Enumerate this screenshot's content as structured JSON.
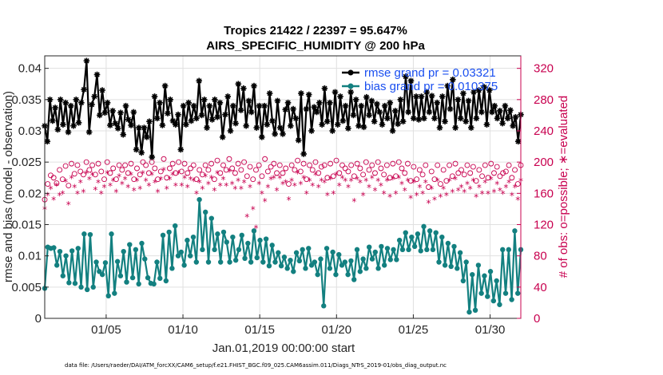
{
  "chart_data": {
    "type": "line",
    "title_line1": "Tropics 21422 / 22397 = 95.647%",
    "title_line2": "AIRS_SPECIFIC_HUMIDITY @ 200 hPa",
    "xlabel": "Jan.01,2019 00:00:00 start",
    "ylabel": "rmse and bias (model - observation)",
    "ylabel_right": "# of obs: o=possible; ∗=evaluated",
    "x_range": [
      1,
      32
    ],
    "ylim": [
      0,
      0.042
    ],
    "ylim_right": [
      0,
      336
    ],
    "x_ticks": [
      5,
      10,
      15,
      20,
      25,
      30
    ],
    "x_tick_labels": [
      "01/05",
      "01/10",
      "01/15",
      "01/20",
      "01/25",
      "01/30"
    ],
    "y_ticks": [
      0,
      0.005,
      0.01,
      0.015,
      0.02,
      0.025,
      0.03,
      0.035,
      0.04
    ],
    "y_tick_labels": [
      "0",
      "0.005",
      "0.01",
      "0.015",
      "0.02",
      "0.025",
      "0.03",
      "0.035",
      "0.04"
    ],
    "y_ticks_right": [
      0,
      40,
      80,
      120,
      160,
      200,
      240,
      280,
      320
    ],
    "y_tick_labels_right": [
      "0",
      "40",
      "80",
      "120",
      "160",
      "200",
      "240",
      "280",
      "320"
    ],
    "grid": true,
    "legend_position": "top-right",
    "colors": {
      "rmse": "#000000",
      "bias": "#138080",
      "obs": "#c8004f",
      "legend_text": "#1a4ff0",
      "grid": "#e0e0e0"
    },
    "series": [
      {
        "name": "rmse grand pr = 0.03321",
        "marker": "star",
        "values": [
          0.0308,
          0.0283,
          0.035,
          0.0316,
          0.0337,
          0.0302,
          0.035,
          0.031,
          0.0345,
          0.0298,
          0.034,
          0.0308,
          0.035,
          0.0313,
          0.0345,
          0.0366,
          0.0412,
          0.0298,
          0.0342,
          0.0355,
          0.039,
          0.0325,
          0.0365,
          0.0329,
          0.0345,
          0.0309,
          0.0332,
          0.0312,
          0.0304,
          0.0329,
          0.0294,
          0.034,
          0.0318,
          0.0309,
          0.033,
          0.027,
          0.0305,
          0.0265,
          0.0305,
          0.029,
          0.0315,
          0.0258,
          0.0355,
          0.032,
          0.0345,
          0.0309,
          0.0372,
          0.0328,
          0.035,
          0.0316,
          0.031,
          0.0326,
          0.027,
          0.034,
          0.031,
          0.0345,
          0.0316,
          0.034,
          0.032,
          0.038,
          0.0325,
          0.035,
          0.0305,
          0.034,
          0.0318,
          0.035,
          0.0322,
          0.0345,
          0.029,
          0.0326,
          0.0355,
          0.03,
          0.034,
          0.0312,
          0.0375,
          0.0333,
          0.0368,
          0.0308,
          0.0348,
          0.033,
          0.0372,
          0.0305,
          0.034,
          0.029,
          0.034,
          0.031,
          0.036,
          0.0316,
          0.0295,
          0.0348,
          0.0305,
          0.0295,
          0.0334,
          0.0345,
          0.0308,
          0.0335,
          0.032,
          0.0285,
          0.036,
          0.0263,
          0.0335,
          0.0358,
          0.03,
          0.0338,
          0.033,
          0.0345,
          0.031,
          0.0368,
          0.0315,
          0.0345,
          0.03,
          0.0362,
          0.031,
          0.0355,
          0.0316,
          0.034,
          0.0304,
          0.0362,
          0.0325,
          0.035,
          0.0308,
          0.034,
          0.0306,
          0.0354,
          0.0325,
          0.0348,
          0.0315,
          0.0343,
          0.033,
          0.031,
          0.034,
          0.032,
          0.0345,
          0.03,
          0.0332,
          0.0311,
          0.035,
          0.0315,
          0.0387,
          0.033,
          0.038,
          0.032,
          0.0355,
          0.0318,
          0.0355,
          0.032,
          0.0362,
          0.033,
          0.0356,
          0.032,
          0.0345,
          0.0305,
          0.0355,
          0.0315,
          0.0372,
          0.0335,
          0.0382,
          0.0305,
          0.035,
          0.032,
          0.036,
          0.0315,
          0.0348,
          0.0305,
          0.0362,
          0.032,
          0.0365,
          0.033,
          0.037,
          0.031,
          0.0365,
          0.033,
          0.034,
          0.032,
          0.0332,
          0.0312,
          0.034,
          0.032,
          0.0333,
          0.0308,
          0.0322,
          0.0283,
          0.0326
        ]
      },
      {
        "name": "bias grand pr = 0.010375",
        "marker": "dot",
        "values": [
          0.0048,
          0.0114,
          0.0112,
          0.0113,
          0.0085,
          0.0107,
          0.0068,
          0.01,
          0.0057,
          0.0108,
          0.0056,
          0.0112,
          0.005,
          0.0135,
          0.0046,
          0.0134,
          0.005,
          0.009,
          0.0075,
          0.007,
          0.0089,
          0.0036,
          0.0135,
          0.004,
          0.0091,
          0.0068,
          0.0107,
          0.0058,
          0.0118,
          0.0065,
          0.011,
          0.0055,
          0.012,
          0.0095,
          0.0065,
          0.0056,
          0.0055,
          0.009,
          0.0064,
          0.0133,
          0.006,
          0.0138,
          0.008,
          0.0148,
          0.01,
          0.0106,
          0.0085,
          0.0125,
          0.01,
          0.013,
          0.009,
          0.019,
          0.011,
          0.017,
          0.009,
          0.016,
          0.011,
          0.0135,
          0.009,
          0.0138,
          0.0122,
          0.009,
          0.013,
          0.0093,
          0.011,
          0.0133,
          0.0096,
          0.012,
          0.009,
          0.014,
          0.0097,
          0.0125,
          0.009,
          0.0127,
          0.0084,
          0.0117,
          0.009,
          0.0105,
          0.0084,
          0.0098,
          0.008,
          0.0093,
          0.0075,
          0.0105,
          0.0092,
          0.011,
          0.008,
          0.0112,
          0.0085,
          0.009,
          0.007,
          0.0095,
          0.002,
          0.0112,
          0.008,
          0.0106,
          0.007,
          0.0102,
          0.0085,
          0.009,
          0.007,
          0.0092,
          0.0062,
          0.011,
          0.0075,
          0.0095,
          0.008,
          0.0114,
          0.0095,
          0.0106,
          0.008,
          0.0115,
          0.0085,
          0.0112,
          0.0094,
          0.011,
          0.0094,
          0.0125,
          0.011,
          0.0137,
          0.011,
          0.013,
          0.0115,
          0.0135,
          0.0108,
          0.0147,
          0.011,
          0.014,
          0.011,
          0.0137,
          0.009,
          0.013,
          0.0085,
          0.012,
          0.0083,
          0.0115,
          0.008,
          0.0105,
          0.006,
          0.009,
          0.001,
          0.007,
          0.0013,
          0.0085,
          0.004,
          0.0068,
          0.0035,
          0.0075,
          0.0028,
          0.006,
          0.0022,
          0.011,
          0.004,
          0.011,
          0.003,
          0.014,
          0.004,
          0.011
        ]
      },
      {
        "name": "obs possible",
        "axis": "right",
        "marker": "circle",
        "values": [
          152,
          172,
          183,
          180,
          173,
          190,
          178,
          195,
          170,
          198,
          185,
          196,
          188,
          184,
          200,
          190,
          196,
          184,
          198,
          188,
          178,
          200,
          186,
          192,
          178,
          196,
          190,
          196,
          186,
          198,
          178,
          192,
          184,
          200,
          196,
          186,
          200,
          192,
          178,
          188,
          204,
          180,
          192,
          198,
          186,
          200,
          188,
          198,
          186,
          192,
          196,
          178,
          190,
          184,
          196,
          190,
          198,
          178,
          202,
          186,
          196,
          190,
          204,
          192,
          186,
          198,
          190,
          200,
          182,
          194,
          178,
          190,
          196,
          182,
          204,
          188,
          194,
          198,
          186,
          196,
          186,
          192,
          172,
          196,
          190,
          202,
          188,
          198,
          178,
          196,
          190,
          200,
          186,
          194,
          196,
          180,
          198,
          182,
          202,
          186,
          196,
          192,
          188,
          196,
          182,
          198,
          192,
          184,
          200,
          190,
          196,
          186,
          200,
          192,
          184,
          196,
          180,
          198,
          182,
          200,
          192,
          186,
          198,
          176,
          194,
          178,
          190,
          184,
          196,
          168,
          188,
          178,
          196,
          172,
          190,
          176,
          196,
          182,
          198,
          186,
          190,
          184,
          196,
          186,
          194,
          176,
          190,
          182,
          196,
          180,
          198,
          186,
          194,
          182,
          186,
          188,
          196,
          180,
          190,
          172,
          196
        ]
      },
      {
        "name": "obs evaluated",
        "axis": "right",
        "marker": "asterisk",
        "values": [
          140,
          158,
          166,
          152,
          170,
          158,
          160,
          175,
          146,
          180,
          168,
          160,
          174,
          162,
          186,
          178,
          184,
          165,
          174,
          160,
          168,
          186,
          170,
          176,
          162,
          182,
          172,
          178,
          168,
          184,
          164,
          176,
          166,
          186,
          176,
          170,
          184,
          174,
          162,
          178,
          190,
          166,
          178,
          184,
          170,
          186,
          170,
          180,
          168,
          178,
          176,
          160,
          174,
          166,
          182,
          172,
          180,
          164,
          186,
          170,
          178,
          170,
          188,
          172,
          166,
          176,
          166,
          174,
          130,
          168,
          140,
          116,
          172,
          160,
          150,
          168,
          178,
          180,
          164,
          180,
          172,
          174,
          152,
          176,
          170,
          186,
          172,
          180,
          160,
          176,
          170,
          184,
          168,
          176,
          174,
          158,
          178,
          160,
          184,
          170,
          180,
          176,
          168,
          176,
          150,
          178,
          174,
          158,
          176,
          168,
          180,
          164,
          176,
          170,
          160,
          176,
          156,
          178,
          160,
          180,
          172,
          164,
          176,
          154,
          174,
          158,
          168,
          160,
          174,
          148,
          166,
          152,
          176,
          156,
          166,
          158,
          176,
          162,
          178,
          164,
          168,
          162,
          172,
          166,
          176,
          156,
          168,
          160,
          174,
          160,
          178,
          162,
          172,
          164,
          160,
          168,
          174,
          158,
          168,
          152,
          176
        ]
      }
    ],
    "footer_text": "data file: /Users/raeder/DAI/ATM_forcXX/CAM6_setup/f.e21.FHIST_BGC.f09_025.CAM6assim.011/Diags_NTrS_2019-01/obs_diag_output.nc"
  }
}
